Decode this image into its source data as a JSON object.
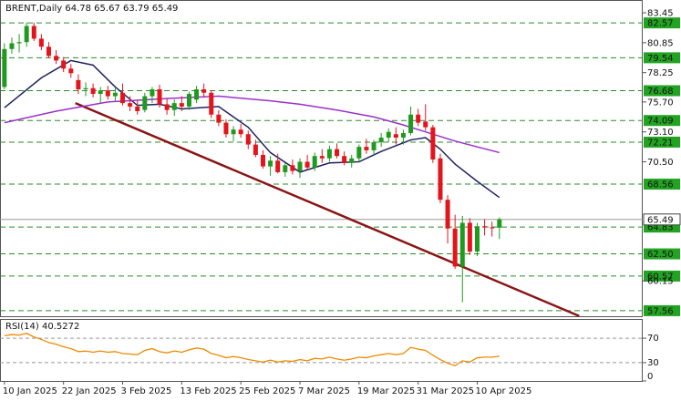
{
  "chart_data": {
    "type": "candlestick",
    "title": "BRENT,Daily 64.78 65.67 63.79 65.49",
    "categories": [
      "10 Jan 2025",
      null,
      null,
      null,
      null,
      null,
      null,
      null,
      "22 Jan 2025",
      null,
      null,
      null,
      null,
      null,
      null,
      null,
      "3 Feb 2025",
      null,
      null,
      null,
      null,
      null,
      null,
      null,
      "13 Feb 2025",
      null,
      null,
      null,
      null,
      null,
      null,
      null,
      "25 Feb 2025",
      null,
      null,
      null,
      null,
      null,
      null,
      null,
      "7 Mar 2025",
      null,
      null,
      null,
      null,
      null,
      null,
      null,
      "19 Mar 2025",
      null,
      null,
      null,
      null,
      null,
      null,
      null,
      "31 Mar 2025",
      null,
      null,
      null,
      null,
      null,
      null,
      null,
      "10 Apr 2025",
      null,
      null,
      null
    ],
    "open": [
      77.0,
      80.3,
      80.8,
      80.9,
      82.3,
      81.2,
      80.5,
      79.7,
      79.3,
      78.6,
      77.6,
      76.8,
      76.9,
      76.4,
      76.7,
      76.2,
      76.5,
      75.6,
      75.3,
      75.0,
      76.2,
      76.8,
      75.5,
      75.0,
      75.6,
      75.3,
      75.9,
      76.8,
      76.5,
      74.6,
      73.9,
      72.9,
      73.3,
      72.9,
      72.0,
      71.1,
      70.1,
      70.6,
      69.6,
      70.2,
      69.7,
      70.5,
      70.0,
      71.0,
      70.8,
      71.6,
      71.0,
      70.4,
      70.8,
      71.8,
      71.5,
      72.2,
      72.6,
      72.9,
      72.6,
      73.0,
      74.6,
      74.0,
      73.5,
      70.8,
      67.2,
      64.7,
      61.4,
      65.2,
      62.7,
      64.9,
      64.8,
      64.78
    ],
    "high": [
      80.8,
      81.3,
      81.6,
      82.6,
      82.6,
      81.6,
      80.9,
      80.2,
      79.6,
      79.0,
      78.1,
      77.4,
      77.3,
      77.0,
      77.1,
      76.9,
      77.3,
      76.2,
      75.8,
      76.5,
      77.0,
      77.2,
      76.0,
      75.9,
      76.2,
      76.6,
      77.1,
      77.3,
      76.7,
      75.0,
      74.2,
      73.6,
      73.8,
      73.2,
      72.4,
      71.5,
      71.0,
      71.2,
      70.4,
      70.7,
      70.8,
      71.1,
      71.3,
      71.6,
      71.9,
      72.1,
      71.4,
      71.1,
      72.0,
      72.5,
      72.4,
      73.0,
      73.4,
      73.5,
      73.3,
      75.3,
      75.1,
      75.5,
      73.7,
      71.2,
      67.6,
      65.9,
      65.8,
      65.6,
      65.2,
      65.5,
      65.3,
      65.67
    ],
    "low": [
      76.8,
      79.9,
      80.0,
      80.5,
      81.0,
      80.2,
      79.5,
      79.0,
      78.3,
      77.8,
      76.4,
      76.2,
      76.1,
      75.6,
      75.9,
      75.7,
      75.4,
      74.9,
      74.6,
      74.8,
      75.6,
      75.2,
      74.6,
      74.5,
      74.9,
      75.0,
      75.6,
      76.1,
      74.3,
      73.6,
      72.6,
      72.3,
      72.6,
      71.6,
      70.9,
      69.9,
      69.3,
      69.5,
      69.2,
      69.4,
      69.1,
      69.8,
      69.7,
      70.4,
      70.5,
      70.8,
      70.2,
      70.0,
      70.5,
      71.2,
      71.1,
      71.8,
      72.2,
      72.0,
      72.0,
      72.8,
      73.6,
      73.2,
      70.4,
      66.9,
      63.4,
      61.2,
      58.3,
      62.4,
      62.3,
      64.1,
      64.0,
      63.79
    ],
    "close": [
      80.3,
      80.8,
      80.9,
      82.3,
      81.2,
      80.5,
      79.7,
      79.3,
      78.6,
      78.2,
      76.8,
      76.9,
      76.4,
      76.7,
      76.2,
      76.5,
      75.6,
      75.3,
      74.9,
      76.2,
      76.8,
      75.5,
      75.0,
      75.6,
      75.3,
      76.4,
      76.8,
      76.5,
      74.6,
      73.9,
      72.9,
      73.3,
      72.9,
      72.0,
      71.1,
      70.1,
      70.6,
      69.6,
      70.2,
      69.7,
      70.5,
      70.0,
      71.0,
      70.8,
      71.6,
      71.0,
      70.4,
      70.8,
      71.8,
      71.5,
      72.2,
      72.6,
      73.1,
      72.6,
      73.0,
      74.6,
      73.9,
      73.5,
      70.7,
      67.2,
      64.7,
      61.4,
      65.2,
      62.7,
      64.9,
      64.8,
      64.78,
      65.49
    ],
    "up_color": "#1f9a1f",
    "down_color": "#e3141b",
    "xlim": [
      -0.6,
      86.4
    ],
    "ylim": [
      57.0,
      84.56
    ],
    "yticks": [
      83.45,
      80.85,
      78.25,
      {
        "value": 75.7,
        "label": "75.70"
      },
      {
        "value": 73.1,
        "label": "73.10"
      },
      {
        "value": 70.5,
        "label": "70.50"
      },
      60.15
    ],
    "levels": {
      "color": "#2b8a2b",
      "label_color": "#22a422",
      "values": [
        82.57,
        79.54,
        76.68,
        74.09,
        72.21,
        68.56,
        64.83,
        {
          "value": 62.5,
          "label": "62.50"
        },
        60.57,
        57.56
      ]
    },
    "last_price": {
      "value": 65.49,
      "color": "#9a9a9a"
    },
    "overlays": [
      {
        "color": "#1c2260",
        "x": [
          0,
          5,
          9,
          12,
          15,
          18,
          21,
          24,
          29,
          33,
          36,
          40,
          44,
          48,
          51,
          55,
          57,
          59,
          61,
          64,
          67
        ],
        "values": [
          75.2,
          77.8,
          79.3,
          78.9,
          77.0,
          75.4,
          75.5,
          75.1,
          75.3,
          73.5,
          71.3,
          69.6,
          70.4,
          70.5,
          71.4,
          72.4,
          72.6,
          71.6,
          70.3,
          68.8,
          67.4
        ]
      },
      {
        "color": "#9b30c8",
        "x": [
          0,
          7,
          14,
          22,
          29,
          36,
          40,
          45,
          50,
          54,
          57,
          61,
          67
        ],
        "values": [
          73.9,
          74.9,
          75.7,
          76.0,
          76.2,
          75.8,
          75.5,
          75.0,
          74.4,
          73.7,
          73.1,
          72.3,
          71.3
        ]
      }
    ],
    "trendline": {
      "color": "#8b1414",
      "x": [
        9.6,
        77.8
      ],
      "values": [
        75.6,
        57.1
      ]
    },
    "rsi": {
      "title": "RSI(14) 40.5272",
      "color": "#f08a00",
      "ylim": [
        0,
        100
      ],
      "yticks": [
        0,
        30,
        70
      ],
      "values": [
        74,
        76,
        75,
        78,
        72,
        68,
        63,
        60,
        56,
        53,
        48,
        49,
        47,
        49,
        47,
        48,
        45,
        44,
        43,
        50,
        53,
        48,
        46,
        49,
        47,
        51,
        54,
        52,
        45,
        42,
        38,
        40,
        38,
        35,
        33,
        31,
        34,
        31,
        33,
        32,
        35,
        33,
        37,
        36,
        39,
        36,
        34,
        36,
        39,
        38,
        41,
        43,
        45,
        43,
        45,
        55,
        52,
        50,
        42,
        35,
        29,
        25,
        33,
        31,
        38,
        39,
        39,
        40.5272
      ]
    }
  }
}
